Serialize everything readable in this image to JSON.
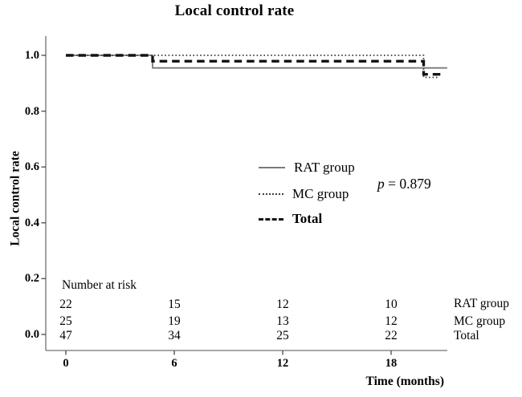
{
  "title": "Local control rate",
  "chart_data": {
    "type": "line",
    "subtype": "kaplan-meier-step-survival",
    "title": "Local control rate",
    "xlabel": "Time (months)",
    "ylabel": "Local control rate",
    "xlim": [
      0,
      21.2
    ],
    "ylim": [
      0.0,
      1.0
    ],
    "grid": false,
    "legend_position": "center",
    "x_ticks": [
      {
        "value": 0,
        "label": "0"
      },
      {
        "value": 6,
        "label": "6"
      },
      {
        "value": 12,
        "label": "12"
      },
      {
        "value": 18,
        "label": "18"
      }
    ],
    "y_ticks": [
      {
        "value": 0.0,
        "label": "0.0"
      },
      {
        "value": 0.2,
        "label": "0.2"
      },
      {
        "value": 0.4,
        "label": "0.4"
      },
      {
        "value": 0.6,
        "label": "0.6"
      },
      {
        "value": 0.8,
        "label": "0.8"
      },
      {
        "value": 1.0,
        "label": "1.0"
      }
    ],
    "series": [
      {
        "name": "RAT group",
        "style": "solid-thin",
        "color": "#7a7a7a",
        "points": [
          [
            0,
            1.0
          ],
          [
            4.8,
            1.0
          ],
          [
            4.8,
            0.955
          ],
          [
            21.1,
            0.955
          ]
        ]
      },
      {
        "name": "MC group",
        "style": "dotted",
        "color": "#3c3c3c",
        "points": [
          [
            0,
            1.0
          ],
          [
            19.8,
            1.0
          ],
          [
            19.8,
            0.921
          ],
          [
            20.6,
            0.921
          ]
        ]
      },
      {
        "name": "Total",
        "style": "dashed-bold",
        "color": "#141414",
        "points": [
          [
            0,
            1.0
          ],
          [
            4.8,
            1.0
          ],
          [
            4.8,
            0.979
          ],
          [
            19.8,
            0.979
          ],
          [
            19.8,
            0.932
          ],
          [
            20.9,
            0.932
          ]
        ]
      }
    ],
    "annotation": "p = 0.879"
  },
  "axes": {
    "x": {
      "label": "Time (months)"
    },
    "y": {
      "label": "Local control rate"
    }
  },
  "legend": {
    "items": [
      {
        "label": "RAT group",
        "style": "solid-thin",
        "bold": false
      },
      {
        "label": "MC group",
        "style": "dotted",
        "bold": false
      },
      {
        "label": "Total",
        "style": "dashed-bold",
        "bold": true
      }
    ]
  },
  "stat": {
    "p_symbol": "p",
    "p_rest": " = 0.879",
    "p_value": "0.879"
  },
  "risk_table": {
    "header": "Number at risk",
    "time_points": [
      0,
      6,
      12,
      18
    ],
    "rows": [
      {
        "label": "RAT group",
        "counts": [
          22,
          15,
          12,
          10
        ]
      },
      {
        "label": "MC group",
        "counts": [
          25,
          19,
          13,
          12
        ]
      },
      {
        "label": "Total",
        "counts": [
          47,
          34,
          25,
          22
        ]
      }
    ]
  },
  "colors": {
    "axis": "#8a8a8a",
    "tick": "#555555",
    "text": "#000000",
    "background": "#ffffff"
  }
}
